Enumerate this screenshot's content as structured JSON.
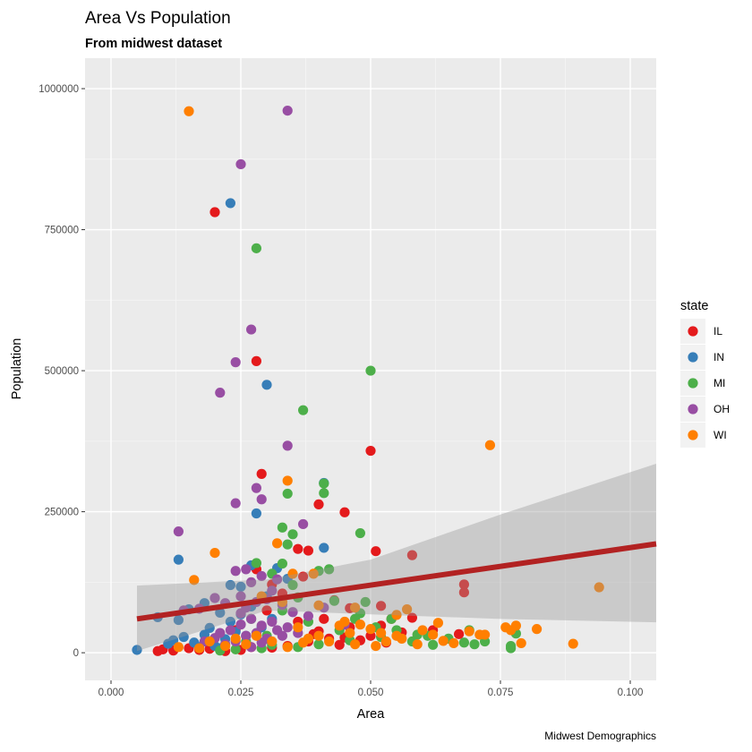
{
  "chart_data": {
    "type": "scatter",
    "title": "Area Vs Population",
    "subtitle": "From midwest dataset",
    "xlabel": "Area",
    "ylabel": "Population",
    "caption": "Midwest Demographics",
    "xlim": [
      -0.005,
      0.105
    ],
    "ylim": [
      -49000,
      1054000
    ],
    "xticks": [
      0.0,
      0.025,
      0.05,
      0.075,
      0.1
    ],
    "xtick_labels": [
      "0.000",
      "0.025",
      "0.050",
      "0.075",
      "0.100"
    ],
    "yticks": [
      0,
      250000,
      500000,
      750000,
      1000000
    ],
    "ytick_labels": [
      "0",
      "250000",
      "500000",
      "750000",
      "1000000"
    ],
    "grid": true,
    "legend": {
      "title": "state",
      "position": "right",
      "entries": [
        {
          "label": "IL",
          "color": "#E41A1C"
        },
        {
          "label": "IN",
          "color": "#377EB8"
        },
        {
          "label": "MI",
          "color": "#4DAF4A"
        },
        {
          "label": "OH",
          "color": "#984EA3"
        },
        {
          "label": "WI",
          "color": "#FF7F00"
        }
      ]
    },
    "smooth": {
      "method": "lm",
      "color": "#B22222",
      "band_color": "#999999",
      "line": [
        [
          0.005,
          60000
        ],
        [
          0.105,
          193000
        ]
      ],
      "band_upper": [
        [
          0.005,
          119000
        ],
        [
          0.03,
          130000
        ],
        [
          0.05,
          165000
        ],
        [
          0.075,
          245000
        ],
        [
          0.105,
          335000
        ]
      ],
      "band_lower": [
        [
          0.005,
          3000
        ],
        [
          0.03,
          75000
        ],
        [
          0.05,
          68000
        ],
        [
          0.075,
          60000
        ],
        [
          0.105,
          54000
        ]
      ]
    },
    "series": [
      {
        "name": "IL",
        "color": "#E41A1C",
        "points": [
          [
            0.02,
            781000
          ],
          [
            0.028,
            517000
          ],
          [
            0.05,
            358000
          ],
          [
            0.029,
            317000
          ],
          [
            0.04,
            263000
          ],
          [
            0.045,
            249000
          ],
          [
            0.036,
            184000
          ],
          [
            0.038,
            181000
          ],
          [
            0.051,
            180000
          ],
          [
            0.058,
            173000
          ],
          [
            0.068,
            121000
          ],
          [
            0.068,
            107000
          ],
          [
            0.043,
            93000
          ],
          [
            0.046,
            79000
          ],
          [
            0.052,
            83000
          ],
          [
            0.031,
            121000
          ],
          [
            0.028,
            148000
          ],
          [
            0.033,
            105000
          ],
          [
            0.037,
            135000
          ],
          [
            0.054,
            60000
          ],
          [
            0.058,
            62000
          ],
          [
            0.067,
            33000
          ],
          [
            0.062,
            40000
          ],
          [
            0.045,
            27000
          ],
          [
            0.048,
            22000
          ],
          [
            0.039,
            33000
          ],
          [
            0.042,
            25000
          ],
          [
            0.05,
            30000
          ],
          [
            0.01,
            6000
          ],
          [
            0.012,
            4000
          ],
          [
            0.015,
            8000
          ],
          [
            0.017,
            5000
          ],
          [
            0.019,
            7000
          ],
          [
            0.022,
            3000
          ],
          [
            0.025,
            5000
          ],
          [
            0.027,
            10000
          ],
          [
            0.031,
            9000
          ],
          [
            0.034,
            12000
          ],
          [
            0.036,
            55000
          ],
          [
            0.04,
            38000
          ],
          [
            0.046,
            45000
          ],
          [
            0.052,
            48000
          ],
          [
            0.056,
            36000
          ],
          [
            0.024,
            40000
          ],
          [
            0.03,
            75000
          ],
          [
            0.041,
            60000
          ],
          [
            0.053,
            18000
          ],
          [
            0.044,
            14000
          ],
          [
            0.038,
            20000
          ],
          [
            0.009,
            3000
          ]
        ]
      },
      {
        "name": "IN",
        "color": "#377EB8",
        "points": [
          [
            0.023,
            797000
          ],
          [
            0.03,
            475000
          ],
          [
            0.041,
            301000
          ],
          [
            0.028,
            247000
          ],
          [
            0.013,
            165000
          ],
          [
            0.041,
            186000
          ],
          [
            0.027,
            155000
          ],
          [
            0.034,
            131000
          ],
          [
            0.023,
            120000
          ],
          [
            0.025,
            117000
          ],
          [
            0.018,
            88000
          ],
          [
            0.021,
            71000
          ],
          [
            0.015,
            77000
          ],
          [
            0.009,
            63000
          ],
          [
            0.013,
            58000
          ],
          [
            0.005,
            5000
          ],
          [
            0.011,
            16000
          ],
          [
            0.012,
            22000
          ],
          [
            0.014,
            28000
          ],
          [
            0.016,
            18000
          ],
          [
            0.018,
            32000
          ],
          [
            0.02,
            12000
          ],
          [
            0.022,
            24000
          ],
          [
            0.024,
            37000
          ],
          [
            0.019,
            44000
          ],
          [
            0.026,
            30000
          ],
          [
            0.029,
            45000
          ],
          [
            0.031,
            60000
          ],
          [
            0.023,
            55000
          ],
          [
            0.017,
            10000
          ],
          [
            0.027,
            82000
          ],
          [
            0.032,
            150000
          ],
          [
            0.03,
            100000
          ],
          [
            0.025,
            68000
          ],
          [
            0.021,
            8000
          ]
        ]
      },
      {
        "name": "MI",
        "color": "#4DAF4A",
        "points": [
          [
            0.028,
            717000
          ],
          [
            0.05,
            500000
          ],
          [
            0.037,
            430000
          ],
          [
            0.034,
            282000
          ],
          [
            0.041,
            283000
          ],
          [
            0.041,
            300000
          ],
          [
            0.033,
            222000
          ],
          [
            0.048,
            212000
          ],
          [
            0.035,
            210000
          ],
          [
            0.028,
            159000
          ],
          [
            0.04,
            145000
          ],
          [
            0.042,
            148000
          ],
          [
            0.033,
            158000
          ],
          [
            0.035,
            120000
          ],
          [
            0.034,
            192000
          ],
          [
            0.031,
            140000
          ],
          [
            0.036,
            98000
          ],
          [
            0.043,
            92000
          ],
          [
            0.049,
            90000
          ],
          [
            0.048,
            70000
          ],
          [
            0.055,
            40000
          ],
          [
            0.059,
            32000
          ],
          [
            0.061,
            30000
          ],
          [
            0.065,
            25000
          ],
          [
            0.068,
            18000
          ],
          [
            0.07,
            15000
          ],
          [
            0.072,
            20000
          ],
          [
            0.077,
            8000
          ],
          [
            0.078,
            34000
          ],
          [
            0.077,
            12000
          ],
          [
            0.062,
            14000
          ],
          [
            0.069,
            40000
          ],
          [
            0.054,
            60000
          ],
          [
            0.051,
            45000
          ],
          [
            0.046,
            22000
          ],
          [
            0.04,
            15000
          ],
          [
            0.036,
            10000
          ],
          [
            0.031,
            14000
          ],
          [
            0.029,
            8000
          ],
          [
            0.024,
            6000
          ],
          [
            0.021,
            4000
          ],
          [
            0.027,
            60000
          ],
          [
            0.033,
            75000
          ],
          [
            0.038,
            55000
          ],
          [
            0.044,
            40000
          ],
          [
            0.03,
            30000
          ],
          [
            0.026,
            20000
          ],
          [
            0.047,
            60000
          ],
          [
            0.052,
            28000
          ],
          [
            0.058,
            20000
          ]
        ]
      },
      {
        "name": "OH",
        "color": "#984EA3",
        "points": [
          [
            0.034,
            961000
          ],
          [
            0.025,
            866000
          ],
          [
            0.027,
            573000
          ],
          [
            0.024,
            515000
          ],
          [
            0.021,
            461000
          ],
          [
            0.034,
            367000
          ],
          [
            0.029,
            272000
          ],
          [
            0.028,
            292000
          ],
          [
            0.024,
            265000
          ],
          [
            0.037,
            228000
          ],
          [
            0.013,
            215000
          ],
          [
            0.031,
            110000
          ],
          [
            0.027,
            125000
          ],
          [
            0.024,
            145000
          ],
          [
            0.026,
            148000
          ],
          [
            0.029,
            136000
          ],
          [
            0.032,
            130000
          ],
          [
            0.02,
            97000
          ],
          [
            0.017,
            78000
          ],
          [
            0.014,
            75000
          ],
          [
            0.022,
            88000
          ],
          [
            0.025,
            100000
          ],
          [
            0.028,
            90000
          ],
          [
            0.03,
            95000
          ],
          [
            0.033,
            85000
          ],
          [
            0.035,
            72000
          ],
          [
            0.038,
            65000
          ],
          [
            0.041,
            80000
          ],
          [
            0.045,
            50000
          ],
          [
            0.027,
            60000
          ],
          [
            0.025,
            50000
          ],
          [
            0.023,
            40000
          ],
          [
            0.026,
            30000
          ],
          [
            0.028,
            35000
          ],
          [
            0.03,
            25000
          ],
          [
            0.032,
            40000
          ],
          [
            0.024,
            20000
          ],
          [
            0.022,
            15000
          ],
          [
            0.027,
            10000
          ],
          [
            0.029,
            48000
          ],
          [
            0.031,
            55000
          ],
          [
            0.033,
            30000
          ],
          [
            0.02,
            26000
          ],
          [
            0.018,
            20000
          ],
          [
            0.025,
            70000
          ],
          [
            0.034,
            45000
          ],
          [
            0.036,
            35000
          ],
          [
            0.026,
            80000
          ],
          [
            0.021,
            35000
          ],
          [
            0.029,
            18000
          ]
        ]
      },
      {
        "name": "WI",
        "color": "#FF7F00",
        "points": [
          [
            0.015,
            960000
          ],
          [
            0.073,
            368000
          ],
          [
            0.034,
            305000
          ],
          [
            0.032,
            194000
          ],
          [
            0.02,
            177000
          ],
          [
            0.035,
            140000
          ],
          [
            0.039,
            140000
          ],
          [
            0.016,
            129000
          ],
          [
            0.029,
            100000
          ],
          [
            0.033,
            90000
          ],
          [
            0.04,
            84000
          ],
          [
            0.047,
            80000
          ],
          [
            0.055,
            67000
          ],
          [
            0.057,
            77000
          ],
          [
            0.094,
            116000
          ],
          [
            0.063,
            53000
          ],
          [
            0.069,
            38000
          ],
          [
            0.071,
            32000
          ],
          [
            0.078,
            48000
          ],
          [
            0.082,
            42000
          ],
          [
            0.076,
            45000
          ],
          [
            0.089,
            16000
          ],
          [
            0.079,
            17000
          ],
          [
            0.077,
            40000
          ],
          [
            0.072,
            32000
          ],
          [
            0.064,
            21000
          ],
          [
            0.06,
            40000
          ],
          [
            0.055,
            30000
          ],
          [
            0.052,
            35000
          ],
          [
            0.05,
            42000
          ],
          [
            0.048,
            50000
          ],
          [
            0.046,
            35000
          ],
          [
            0.044,
            48000
          ],
          [
            0.042,
            20000
          ],
          [
            0.04,
            30000
          ],
          [
            0.038,
            25000
          ],
          [
            0.036,
            45000
          ],
          [
            0.034,
            10000
          ],
          [
            0.031,
            20000
          ],
          [
            0.028,
            30000
          ],
          [
            0.026,
            15000
          ],
          [
            0.024,
            25000
          ],
          [
            0.022,
            12000
          ],
          [
            0.019,
            20000
          ],
          [
            0.017,
            8000
          ],
          [
            0.013,
            10000
          ],
          [
            0.053,
            20000
          ],
          [
            0.056,
            25000
          ],
          [
            0.059,
            15000
          ],
          [
            0.066,
            17000
          ],
          [
            0.051,
            12000
          ],
          [
            0.047,
            15000
          ],
          [
            0.062,
            32000
          ],
          [
            0.037,
            18000
          ],
          [
            0.045,
            55000
          ]
        ]
      }
    ]
  }
}
